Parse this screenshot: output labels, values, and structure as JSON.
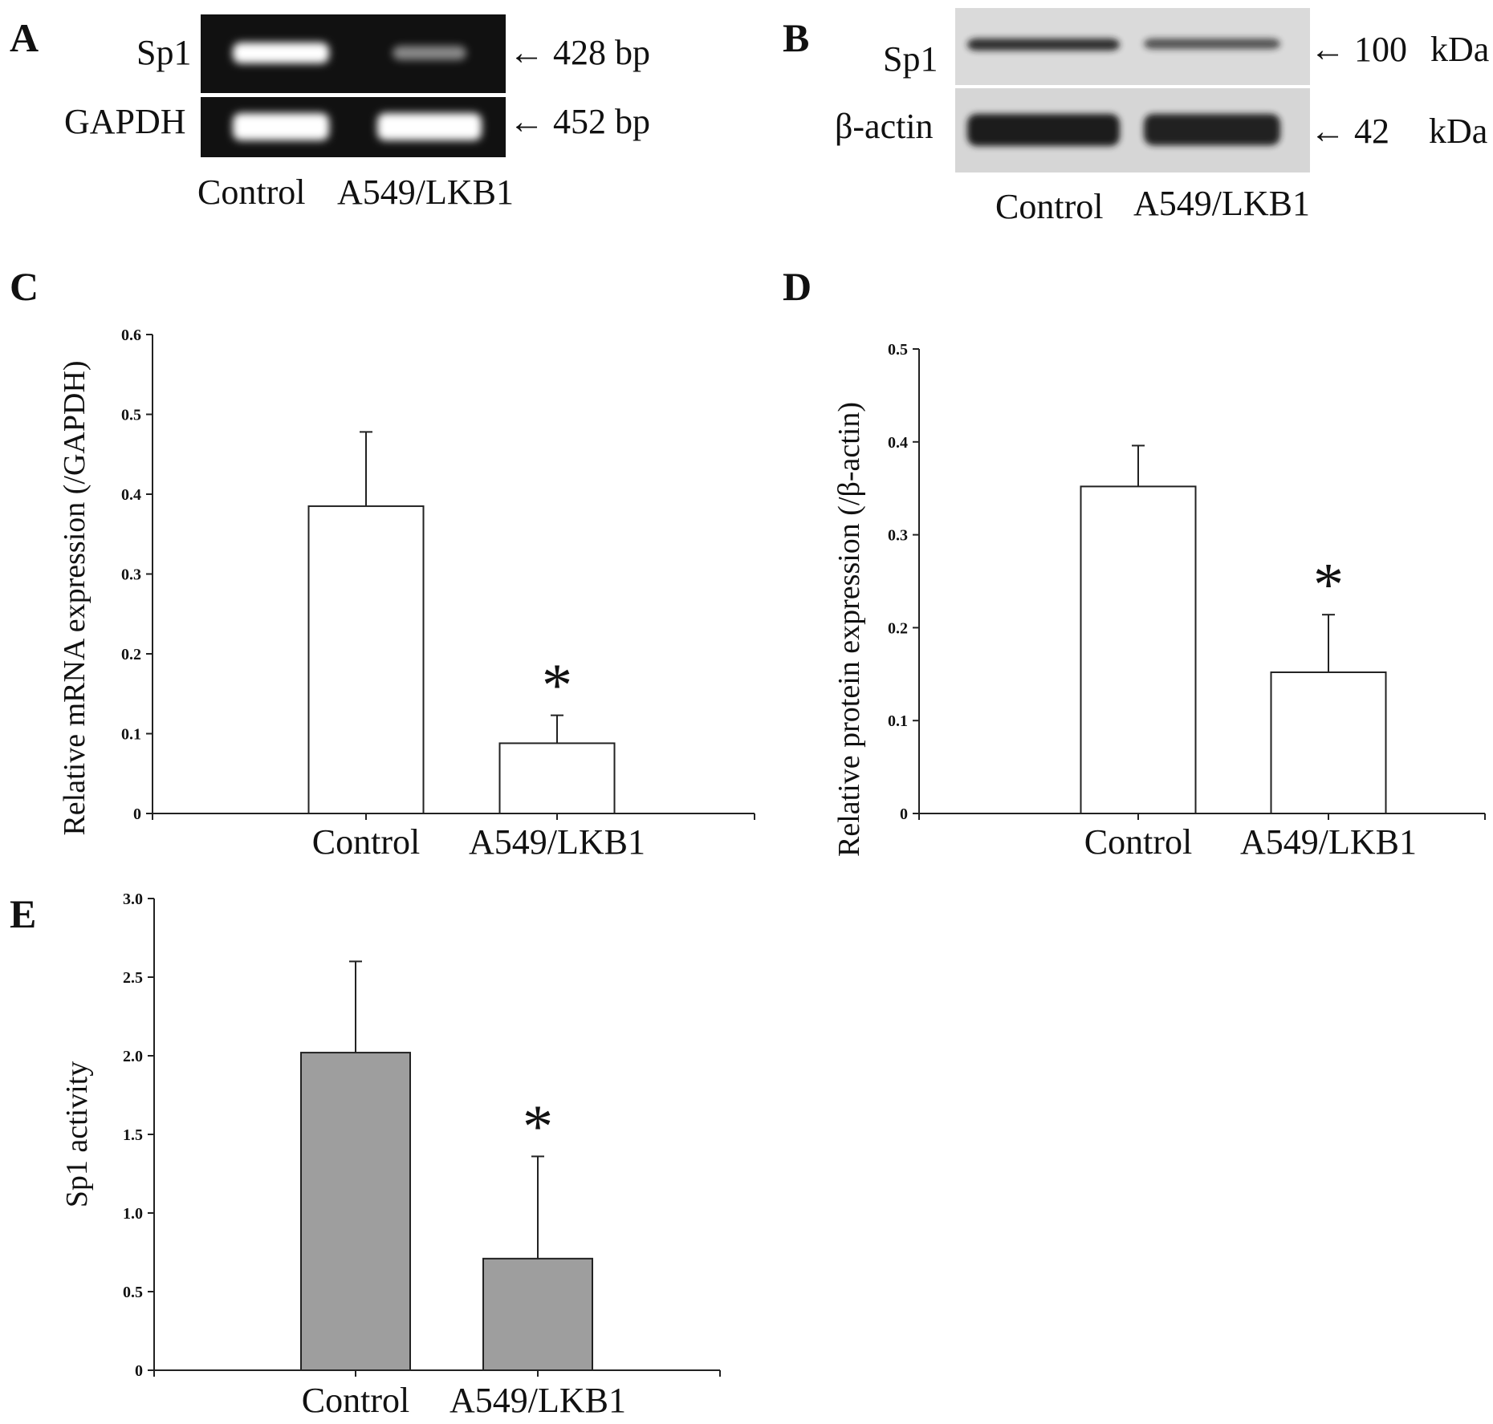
{
  "panel_a": {
    "letter": "A",
    "rows": [
      {
        "label": "Sp1",
        "size": "428 bp",
        "band_intensities": [
          1.0,
          0.35
        ]
      },
      {
        "label": "GAPDH",
        "size": "452 bp",
        "band_intensities": [
          1.0,
          1.0
        ]
      }
    ],
    "lanes": [
      "Control",
      "A549/LKB1"
    ]
  },
  "panel_b": {
    "letter": "B",
    "rows": [
      {
        "label": "Sp1",
        "size": "100",
        "unit": "kDa",
        "band_intensities": [
          0.85,
          0.55
        ]
      },
      {
        "label": "β-actin",
        "size": "42",
        "unit": "kDa",
        "band_intensities": [
          1.0,
          0.95
        ]
      }
    ],
    "lanes": [
      "Control",
      "A549/LKB1"
    ]
  },
  "panel_c": {
    "letter": "C"
  },
  "panel_d": {
    "letter": "D"
  },
  "panel_e": {
    "letter": "E"
  },
  "colors": {
    "bar_white": "#ffffff",
    "bar_gray": "#9e9e9e",
    "gel_bg": "#111111",
    "blot_bg": "#dadada"
  },
  "chart_data": [
    {
      "type": "bar",
      "panel": "C",
      "categories": [
        "Control",
        "A549/LKB1"
      ],
      "values": [
        0.385,
        0.088
      ],
      "errors": [
        0.093,
        0.035
      ],
      "significance": [
        "",
        "*"
      ],
      "ylabel": "Relative mRNA expression (/GAPDH)",
      "ylim": [
        0,
        0.6
      ],
      "yticks": [
        "0",
        "0.1",
        "0.2",
        "0.3",
        "0.4",
        "0.5",
        "0.6"
      ],
      "bar_color": "#ffffff"
    },
    {
      "type": "bar",
      "panel": "D",
      "categories": [
        "Control",
        "A549/LKB1"
      ],
      "values": [
        0.352,
        0.152
      ],
      "errors": [
        0.044,
        0.062
      ],
      "significance": [
        "",
        "*"
      ],
      "ylabel": "Relative protein expression (/β-actin)",
      "ylim": [
        0,
        0.5
      ],
      "yticks": [
        "0",
        "0.1",
        "0.2",
        "0.3",
        "0.4",
        "0.5"
      ],
      "bar_color": "#ffffff"
    },
    {
      "type": "bar",
      "panel": "E",
      "categories": [
        "Control",
        "A549/LKB1"
      ],
      "values": [
        2.02,
        0.71
      ],
      "errors": [
        0.58,
        0.65
      ],
      "significance": [
        "",
        "*"
      ],
      "ylabel": "Sp1 activity",
      "ylim": [
        0,
        3.0
      ],
      "yticks": [
        "0",
        "0.5",
        "1.0",
        "1.5",
        "2.0",
        "2.5",
        "3.0"
      ],
      "bar_color": "#9e9e9e"
    }
  ]
}
